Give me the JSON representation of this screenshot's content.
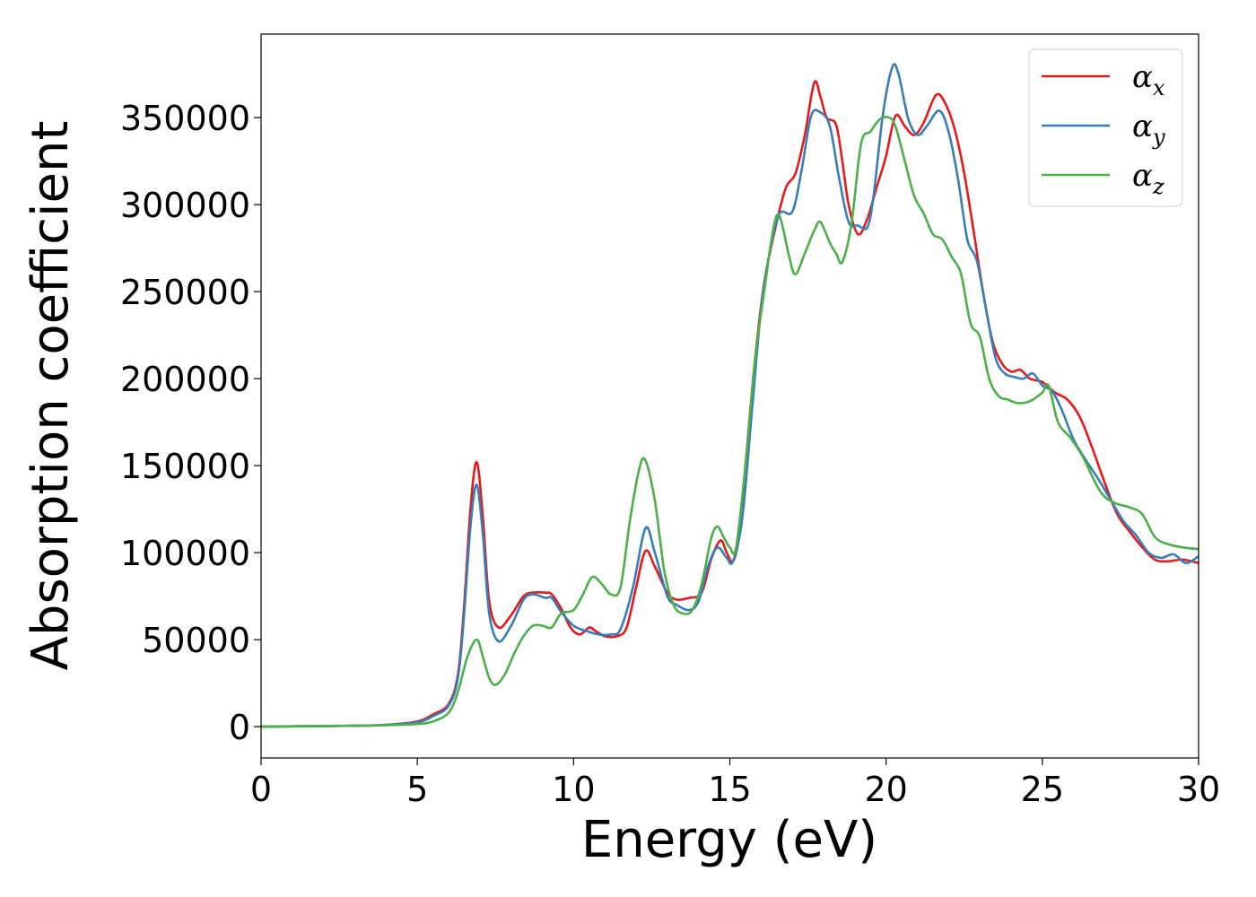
{
  "chart_data": {
    "type": "line",
    "xlabel": "Energy (eV)",
    "ylabel": "Absorption coefficient",
    "xlim": [
      0,
      30
    ],
    "ylim": [
      -18000,
      398000
    ],
    "xticks": [
      0,
      5,
      10,
      15,
      20,
      25,
      30
    ],
    "yticks": [
      0,
      50000,
      100000,
      150000,
      200000,
      250000,
      300000,
      350000
    ],
    "grid": false,
    "legend_position": "top-right",
    "series": [
      {
        "name": "α",
        "subscript": "x",
        "color": "#e41a1c",
        "points": [
          [
            0,
            0
          ],
          [
            3,
            500
          ],
          [
            4,
            1000
          ],
          [
            5,
            3000
          ],
          [
            5.5,
            7000
          ],
          [
            6,
            13000
          ],
          [
            6.3,
            30000
          ],
          [
            6.5,
            70000
          ],
          [
            6.7,
            125000
          ],
          [
            6.9,
            152000
          ],
          [
            7.1,
            120000
          ],
          [
            7.3,
            72000
          ],
          [
            7.6,
            57000
          ],
          [
            8,
            64000
          ],
          [
            8.4,
            75000
          ],
          [
            8.7,
            77000
          ],
          [
            9.1,
            77000
          ],
          [
            9.3,
            76000
          ],
          [
            9.6,
            68000
          ],
          [
            9.9,
            57000
          ],
          [
            10.2,
            53000
          ],
          [
            10.5,
            57000
          ],
          [
            10.7,
            55000
          ],
          [
            11,
            52000
          ],
          [
            11.4,
            52000
          ],
          [
            11.7,
            57000
          ],
          [
            12,
            80000
          ],
          [
            12.3,
            101000
          ],
          [
            12.6,
            92000
          ],
          [
            13,
            77000
          ],
          [
            13.3,
            73000
          ],
          [
            13.7,
            74000
          ],
          [
            14.1,
            77000
          ],
          [
            14.4,
            96000
          ],
          [
            14.7,
            107000
          ],
          [
            14.9,
            100000
          ],
          [
            15.1,
            95000
          ],
          [
            15.3,
            110000
          ],
          [
            15.5,
            150000
          ],
          [
            15.8,
            210000
          ],
          [
            16.1,
            255000
          ],
          [
            16.5,
            290000
          ],
          [
            16.8,
            310000
          ],
          [
            17.1,
            318000
          ],
          [
            17.4,
            340000
          ],
          [
            17.7,
            370000
          ],
          [
            17.9,
            362000
          ],
          [
            18.1,
            350000
          ],
          [
            18.4,
            346000
          ],
          [
            18.6,
            325000
          ],
          [
            18.8,
            300000
          ],
          [
            19.1,
            283000
          ],
          [
            19.4,
            292000
          ],
          [
            19.7,
            310000
          ],
          [
            20,
            328000
          ],
          [
            20.3,
            351000
          ],
          [
            20.6,
            345000
          ],
          [
            20.9,
            340000
          ],
          [
            21.2,
            347000
          ],
          [
            21.6,
            363000
          ],
          [
            21.9,
            358000
          ],
          [
            22.2,
            343000
          ],
          [
            22.5,
            318000
          ],
          [
            22.8,
            285000
          ],
          [
            23.1,
            250000
          ],
          [
            23.4,
            222000
          ],
          [
            23.7,
            209000
          ],
          [
            24,
            204000
          ],
          [
            24.3,
            205000
          ],
          [
            24.6,
            200000
          ],
          [
            25,
            198000
          ],
          [
            25.4,
            192000
          ],
          [
            25.8,
            188000
          ],
          [
            26.2,
            178000
          ],
          [
            26.6,
            160000
          ],
          [
            27,
            140000
          ],
          [
            27.4,
            122000
          ],
          [
            27.8,
            112000
          ],
          [
            28.2,
            103000
          ],
          [
            28.6,
            96000
          ],
          [
            29,
            95000
          ],
          [
            29.5,
            96000
          ],
          [
            30,
            94000
          ]
        ]
      },
      {
        "name": "α",
        "subscript": "y",
        "color": "#377eb8",
        "points": [
          [
            0,
            0
          ],
          [
            3,
            500
          ],
          [
            4,
            1000
          ],
          [
            5,
            2500
          ],
          [
            5.5,
            6000
          ],
          [
            6,
            12000
          ],
          [
            6.3,
            28000
          ],
          [
            6.5,
            65000
          ],
          [
            6.7,
            115000
          ],
          [
            6.9,
            139000
          ],
          [
            7.1,
            110000
          ],
          [
            7.3,
            65000
          ],
          [
            7.6,
            49000
          ],
          [
            8,
            58000
          ],
          [
            8.4,
            73000
          ],
          [
            8.7,
            76000
          ],
          [
            9.1,
            74000
          ],
          [
            9.3,
            74000
          ],
          [
            9.6,
            66000
          ],
          [
            10,
            58000
          ],
          [
            10.4,
            55000
          ],
          [
            10.8,
            53000
          ],
          [
            11.2,
            53000
          ],
          [
            11.5,
            56000
          ],
          [
            11.9,
            80000
          ],
          [
            12.3,
            114000
          ],
          [
            12.6,
            100000
          ],
          [
            13,
            75000
          ],
          [
            13.3,
            70000
          ],
          [
            13.7,
            67000
          ],
          [
            14,
            72000
          ],
          [
            14.3,
            92000
          ],
          [
            14.6,
            103000
          ],
          [
            14.9,
            97000
          ],
          [
            15.1,
            95000
          ],
          [
            15.4,
            120000
          ],
          [
            15.7,
            180000
          ],
          [
            16,
            240000
          ],
          [
            16.3,
            275000
          ],
          [
            16.6,
            295000
          ],
          [
            17,
            296000
          ],
          [
            17.3,
            320000
          ],
          [
            17.6,
            351000
          ],
          [
            17.9,
            353000
          ],
          [
            18.2,
            345000
          ],
          [
            18.5,
            315000
          ],
          [
            18.8,
            290000
          ],
          [
            19.1,
            288000
          ],
          [
            19.4,
            287000
          ],
          [
            19.6,
            305000
          ],
          [
            19.9,
            352000
          ],
          [
            20.2,
            379000
          ],
          [
            20.4,
            375000
          ],
          [
            20.7,
            350000
          ],
          [
            21,
            340000
          ],
          [
            21.3,
            345000
          ],
          [
            21.7,
            354000
          ],
          [
            22,
            342000
          ],
          [
            22.3,
            315000
          ],
          [
            22.6,
            280000
          ],
          [
            22.9,
            268000
          ],
          [
            23.2,
            240000
          ],
          [
            23.5,
            212000
          ],
          [
            23.8,
            203000
          ],
          [
            24.1,
            201000
          ],
          [
            24.4,
            200000
          ],
          [
            24.7,
            203000
          ],
          [
            25,
            196000
          ],
          [
            25.3,
            193000
          ],
          [
            25.6,
            183000
          ],
          [
            26,
            165000
          ],
          [
            26.4,
            153000
          ],
          [
            26.8,
            142000
          ],
          [
            27.2,
            130000
          ],
          [
            27.6,
            118000
          ],
          [
            28,
            110000
          ],
          [
            28.4,
            100000
          ],
          [
            28.8,
            97000
          ],
          [
            29.2,
            99000
          ],
          [
            29.6,
            94000
          ],
          [
            30,
            98000
          ]
        ]
      },
      {
        "name": "α",
        "subscript": "z",
        "color": "#4daf4a",
        "points": [
          [
            0,
            0
          ],
          [
            3,
            500
          ],
          [
            4,
            800
          ],
          [
            5,
            1500
          ],
          [
            5.5,
            3000
          ],
          [
            6,
            8000
          ],
          [
            6.3,
            20000
          ],
          [
            6.6,
            40000
          ],
          [
            6.9,
            50000
          ],
          [
            7.1,
            40000
          ],
          [
            7.3,
            28000
          ],
          [
            7.5,
            24000
          ],
          [
            7.8,
            30000
          ],
          [
            8.1,
            42000
          ],
          [
            8.4,
            52000
          ],
          [
            8.7,
            58000
          ],
          [
            9,
            58000
          ],
          [
            9.3,
            57000
          ],
          [
            9.6,
            65000
          ],
          [
            10,
            67000
          ],
          [
            10.3,
            76000
          ],
          [
            10.6,
            86000
          ],
          [
            10.9,
            82000
          ],
          [
            11.2,
            76000
          ],
          [
            11.5,
            80000
          ],
          [
            11.8,
            118000
          ],
          [
            12.1,
            148000
          ],
          [
            12.3,
            153000
          ],
          [
            12.6,
            130000
          ],
          [
            12.9,
            90000
          ],
          [
            13.2,
            70000
          ],
          [
            13.5,
            65000
          ],
          [
            13.8,
            67000
          ],
          [
            14.1,
            82000
          ],
          [
            14.4,
            108000
          ],
          [
            14.6,
            115000
          ],
          [
            14.8,
            109000
          ],
          [
            15,
            103000
          ],
          [
            15.2,
            103000
          ],
          [
            15.5,
            150000
          ],
          [
            15.8,
            210000
          ],
          [
            16.1,
            250000
          ],
          [
            16.4,
            287000
          ],
          [
            16.6,
            293000
          ],
          [
            16.9,
            270000
          ],
          [
            17.1,
            260000
          ],
          [
            17.4,
            272000
          ],
          [
            17.7,
            285000
          ],
          [
            17.9,
            290000
          ],
          [
            18.2,
            278000
          ],
          [
            18.4,
            272000
          ],
          [
            18.6,
            267000
          ],
          [
            18.9,
            290000
          ],
          [
            19.2,
            335000
          ],
          [
            19.5,
            342000
          ],
          [
            19.8,
            349000
          ],
          [
            20.1,
            350000
          ],
          [
            20.3,
            345000
          ],
          [
            20.6,
            325000
          ],
          [
            20.9,
            305000
          ],
          [
            21.2,
            295000
          ],
          [
            21.5,
            283000
          ],
          [
            21.8,
            280000
          ],
          [
            22.1,
            270000
          ],
          [
            22.4,
            260000
          ],
          [
            22.7,
            232000
          ],
          [
            23,
            224000
          ],
          [
            23.3,
            200000
          ],
          [
            23.6,
            190000
          ],
          [
            23.9,
            188000
          ],
          [
            24.2,
            186000
          ],
          [
            24.6,
            187000
          ],
          [
            25,
            192000
          ],
          [
            25.2,
            196000
          ],
          [
            25.5,
            175000
          ],
          [
            25.9,
            166000
          ],
          [
            26.3,
            155000
          ],
          [
            26.7,
            140000
          ],
          [
            27,
            132000
          ],
          [
            27.4,
            128000
          ],
          [
            27.8,
            126000
          ],
          [
            28.2,
            122000
          ],
          [
            28.6,
            109000
          ],
          [
            29,
            105000
          ],
          [
            29.5,
            103000
          ],
          [
            30,
            102000
          ]
        ]
      }
    ]
  }
}
